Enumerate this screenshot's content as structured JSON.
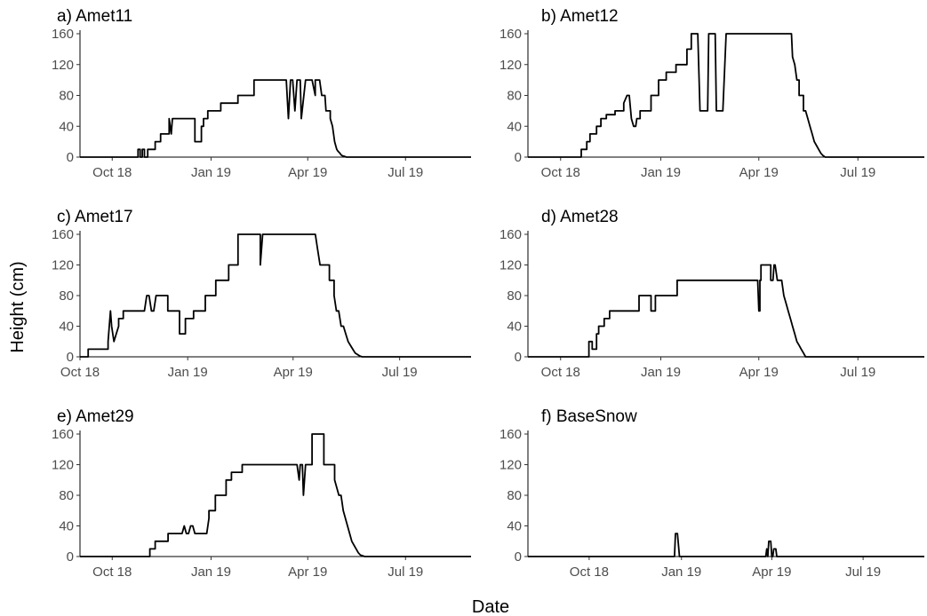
{
  "figure": {
    "ylabel": "Height (cm)",
    "xlabel": "Date"
  },
  "chart_data": [
    {
      "type": "line",
      "title": "a) Amet11",
      "xlim": [
        "2018-09-01",
        "2019-08-31"
      ],
      "ylim": [
        0,
        160
      ],
      "yticks": [
        0,
        40,
        80,
        120,
        160
      ],
      "xticks": [
        {
          "date": "2018-10-01",
          "label": "Oct 18"
        },
        {
          "date": "2019-01-01",
          "label": "Jan 19"
        },
        {
          "date": "2019-04-01",
          "label": "Apr 19"
        },
        {
          "date": "2019-07-01",
          "label": "Jul 19"
        }
      ],
      "grid": false,
      "series": [
        {
          "x": [
            "2018-09-01",
            "2018-10-25",
            "2018-10-25",
            "2018-10-27",
            "2018-10-27",
            "2018-10-29",
            "2018-10-29",
            "2018-10-31",
            "2018-10-31",
            "2018-11-03",
            "2018-11-03",
            "2018-11-10",
            "2018-11-10",
            "2018-11-15",
            "2018-11-15",
            "2018-11-23",
            "2018-11-23",
            "2018-11-25",
            "2018-11-26",
            "2018-11-27",
            "2018-11-28",
            "2018-12-17",
            "2018-12-17",
            "2018-12-23",
            "2018-12-23",
            "2018-12-25",
            "2018-12-25",
            "2018-12-29",
            "2018-12-29",
            "2019-01-10",
            "2019-01-10",
            "2019-01-26",
            "2019-01-26",
            "2019-02-10",
            "2019-02-10",
            "2019-03-12",
            "2019-03-14",
            "2019-03-16",
            "2019-03-18",
            "2019-03-20",
            "2019-03-22",
            "2019-03-25",
            "2019-03-26",
            "2019-03-30",
            "2019-04-01",
            "2019-04-03",
            "2019-04-05",
            "2019-04-08",
            "2019-04-08",
            "2019-04-12",
            "2019-04-14",
            "2019-04-17",
            "2019-04-18",
            "2019-04-22",
            "2019-04-22",
            "2019-04-24",
            "2019-04-25",
            "2019-04-26",
            "2019-04-27",
            "2019-04-28",
            "2019-04-29",
            "2019-05-01",
            "2019-05-02",
            "2019-05-03",
            "2019-05-05",
            "2019-05-07",
            "2019-05-09",
            "2019-05-11",
            "2019-05-13",
            "2019-08-31"
          ],
          "y": [
            0,
            0,
            10,
            10,
            0,
            0,
            10,
            10,
            0,
            0,
            10,
            10,
            20,
            20,
            30,
            30,
            50,
            30,
            50,
            50,
            50,
            50,
            20,
            20,
            40,
            40,
            50,
            50,
            60,
            60,
            70,
            70,
            80,
            80,
            100,
            100,
            50,
            100,
            100,
            60,
            100,
            100,
            50,
            100,
            100,
            100,
            100,
            80,
            100,
            100,
            80,
            80,
            60,
            60,
            50,
            40,
            30,
            20,
            15,
            10,
            8,
            5,
            3,
            2,
            1,
            0,
            0,
            0,
            0,
            0
          ]
        }
      ]
    },
    {
      "type": "line",
      "title": "b) Amet12",
      "xlim": [
        "2018-09-01",
        "2019-08-31"
      ],
      "ylim": [
        0,
        160
      ],
      "yticks": [
        0,
        40,
        80,
        120,
        160
      ],
      "xticks": [
        {
          "date": "2018-10-01",
          "label": "Oct 18"
        },
        {
          "date": "2019-01-01",
          "label": "Jan 19"
        },
        {
          "date": "2019-04-01",
          "label": "Apr 19"
        },
        {
          "date": "2019-07-01",
          "label": "Jul 19"
        }
      ],
      "grid": false,
      "series": [
        {
          "x": [
            "2018-09-01",
            "2018-10-20",
            "2018-10-20",
            "2018-10-25",
            "2018-10-25",
            "2018-10-28",
            "2018-10-28",
            "2018-11-03",
            "2018-11-03",
            "2018-11-07",
            "2018-11-07",
            "2018-11-12",
            "2018-11-12",
            "2018-11-20",
            "2018-11-20",
            "2018-11-28",
            "2018-11-28",
            "2018-12-01",
            "2018-12-03",
            "2018-12-05",
            "2018-12-07",
            "2018-12-09",
            "2018-12-10",
            "2018-12-13",
            "2018-12-13",
            "2018-12-23",
            "2018-12-23",
            "2018-12-30",
            "2018-12-30",
            "2019-01-06",
            "2019-01-06",
            "2019-01-15",
            "2019-01-15",
            "2019-01-25",
            "2019-01-25",
            "2019-01-29",
            "2019-01-29",
            "2019-02-04",
            "2019-02-06",
            "2019-02-08",
            "2019-02-10",
            "2019-02-13",
            "2019-02-14",
            "2019-02-20",
            "2019-02-21",
            "2019-02-23",
            "2019-02-24",
            "2019-02-27",
            "2019-03-02",
            "2019-03-04",
            "2019-03-06",
            "2019-05-01",
            "2019-05-02",
            "2019-05-04",
            "2019-05-06",
            "2019-05-08",
            "2019-05-08",
            "2019-05-12",
            "2019-05-12",
            "2019-05-14",
            "2019-05-16",
            "2019-05-18",
            "2019-05-20",
            "2019-05-22",
            "2019-05-24",
            "2019-05-26",
            "2019-05-28",
            "2019-05-30",
            "2019-06-01",
            "2019-08-31"
          ],
          "y": [
            0,
            0,
            10,
            10,
            20,
            20,
            30,
            30,
            40,
            40,
            50,
            50,
            55,
            55,
            60,
            60,
            70,
            80,
            80,
            50,
            40,
            40,
            50,
            50,
            60,
            60,
            80,
            80,
            100,
            100,
            110,
            110,
            120,
            120,
            140,
            140,
            160,
            160,
            60,
            60,
            60,
            60,
            160,
            160,
            60,
            60,
            60,
            60,
            160,
            160,
            160,
            160,
            130,
            120,
            100,
            100,
            80,
            80,
            60,
            60,
            50,
            40,
            30,
            20,
            15,
            10,
            5,
            2,
            0,
            0
          ]
        }
      ]
    },
    {
      "type": "line",
      "title": "c) Amet17",
      "xlim": [
        "2018-10-01",
        "2019-08-31"
      ],
      "ylim": [
        0,
        160
      ],
      "yticks": [
        0,
        40,
        80,
        120,
        160
      ],
      "xticks": [
        {
          "date": "2018-10-01",
          "label": "Oct 18"
        },
        {
          "date": "2019-01-01",
          "label": "Jan 19"
        },
        {
          "date": "2019-04-01",
          "label": "Apr 19"
        },
        {
          "date": "2019-07-01",
          "label": "Jul 19"
        }
      ],
      "grid": false,
      "series": [
        {
          "x": [
            "2018-10-01",
            "2018-10-08",
            "2018-10-08",
            "2018-10-25",
            "2018-10-25",
            "2018-10-27",
            "2018-10-28",
            "2018-10-30",
            "2018-11-01",
            "2018-11-03",
            "2018-11-03",
            "2018-11-07",
            "2018-11-07",
            "2018-11-10",
            "2018-11-10",
            "2018-11-25",
            "2018-11-27",
            "2018-11-29",
            "2018-12-01",
            "2018-12-03",
            "2018-12-05",
            "2018-12-07",
            "2018-12-09",
            "2018-12-15",
            "2018-12-15",
            "2018-12-25",
            "2018-12-25",
            "2018-12-30",
            "2018-12-30",
            "2019-01-06",
            "2019-01-06",
            "2019-01-16",
            "2019-01-16",
            "2019-01-25",
            "2019-01-25",
            "2019-02-05",
            "2019-02-05",
            "2019-02-13",
            "2019-02-13",
            "2019-02-16",
            "2019-02-16",
            "2019-03-01",
            "2019-03-02",
            "2019-03-04",
            "2019-03-04",
            "2019-03-06",
            "2019-03-08",
            "2019-04-18",
            "2019-04-20",
            "2019-04-22",
            "2019-04-24",
            "2019-04-26",
            "2019-04-28",
            "2019-05-02",
            "2019-05-02",
            "2019-05-06",
            "2019-05-06",
            "2019-05-08",
            "2019-05-10",
            "2019-05-12",
            "2019-05-14",
            "2019-05-16",
            "2019-05-18",
            "2019-05-20",
            "2019-05-22",
            "2019-05-24",
            "2019-05-26",
            "2019-05-28",
            "2019-05-30",
            "2019-08-31"
          ],
          "y": [
            0,
            0,
            10,
            10,
            20,
            60,
            40,
            20,
            30,
            40,
            50,
            50,
            60,
            60,
            60,
            60,
            80,
            80,
            60,
            60,
            80,
            80,
            80,
            80,
            60,
            60,
            30,
            30,
            50,
            50,
            60,
            60,
            80,
            80,
            100,
            100,
            120,
            120,
            160,
            160,
            160,
            160,
            160,
            160,
            120,
            160,
            160,
            160,
            160,
            140,
            120,
            120,
            120,
            120,
            100,
            100,
            80,
            60,
            60,
            40,
            40,
            30,
            20,
            15,
            10,
            5,
            3,
            1,
            0,
            0
          ]
        }
      ]
    },
    {
      "type": "line",
      "title": "d) Amet28",
      "xlim": [
        "2018-09-01",
        "2019-08-31"
      ],
      "ylim": [
        0,
        160
      ],
      "yticks": [
        0,
        40,
        80,
        120,
        160
      ],
      "xticks": [
        {
          "date": "2018-10-01",
          "label": "Oct 18"
        },
        {
          "date": "2019-01-01",
          "label": "Jan 19"
        },
        {
          "date": "2019-04-01",
          "label": "Apr 19"
        },
        {
          "date": "2019-07-01",
          "label": "Jul 19"
        }
      ],
      "grid": false,
      "series": [
        {
          "x": [
            "2018-09-01",
            "2018-10-27",
            "2018-10-27",
            "2018-10-30",
            "2018-10-30",
            "2018-11-03",
            "2018-11-03",
            "2018-11-05",
            "2018-11-05",
            "2018-11-10",
            "2018-11-10",
            "2018-11-15",
            "2018-11-15",
            "2018-12-12",
            "2018-12-12",
            "2018-12-23",
            "2018-12-23",
            "2018-12-27",
            "2018-12-27",
            "2019-01-16",
            "2019-01-16",
            "2019-03-31",
            "2019-04-01",
            "2019-04-02",
            "2019-04-02",
            "2019-04-03",
            "2019-04-03",
            "2019-04-12",
            "2019-04-12",
            "2019-04-14",
            "2019-04-15",
            "2019-04-16",
            "2019-04-18",
            "2019-04-20",
            "2019-04-21",
            "2019-04-22",
            "2019-04-24",
            "2019-04-26",
            "2019-04-28",
            "2019-04-30",
            "2019-05-02",
            "2019-05-04",
            "2019-05-06",
            "2019-05-08",
            "2019-05-10",
            "2019-05-12",
            "2019-05-14",
            "2019-08-31"
          ],
          "y": [
            0,
            0,
            20,
            20,
            10,
            10,
            30,
            30,
            40,
            40,
            50,
            50,
            60,
            60,
            80,
            80,
            60,
            60,
            80,
            80,
            100,
            100,
            60,
            60,
            100,
            100,
            120,
            120,
            100,
            100,
            120,
            120,
            100,
            100,
            100,
            100,
            80,
            70,
            60,
            50,
            40,
            30,
            20,
            15,
            10,
            5,
            0,
            0
          ]
        }
      ]
    },
    {
      "type": "line",
      "title": "e) Amet29",
      "xlim": [
        "2018-09-01",
        "2019-08-31"
      ],
      "ylim": [
        0,
        160
      ],
      "yticks": [
        0,
        40,
        80,
        120,
        160
      ],
      "xticks": [
        {
          "date": "2018-10-01",
          "label": "Oct 18"
        },
        {
          "date": "2019-01-01",
          "label": "Jan 19"
        },
        {
          "date": "2019-04-01",
          "label": "Apr 19"
        },
        {
          "date": "2019-07-01",
          "label": "Jul 19"
        }
      ],
      "grid": false,
      "series": [
        {
          "x": [
            "2018-09-01",
            "2018-11-05",
            "2018-11-05",
            "2018-11-10",
            "2018-11-10",
            "2018-11-22",
            "2018-11-22",
            "2018-12-05",
            "2018-12-07",
            "2018-12-09",
            "2018-12-11",
            "2018-12-13",
            "2018-12-15",
            "2018-12-17",
            "2018-12-19",
            "2018-12-21",
            "2018-12-28",
            "2018-12-30",
            "2018-12-30",
            "2019-01-05",
            "2019-01-05",
            "2019-01-15",
            "2019-01-15",
            "2019-01-20",
            "2019-01-20",
            "2019-01-30",
            "2019-01-30",
            "2019-03-22",
            "2019-03-24",
            "2019-03-25",
            "2019-03-27",
            "2019-03-28",
            "2019-03-30",
            "2019-04-02",
            "2019-04-05",
            "2019-04-05",
            "2019-04-14",
            "2019-04-16",
            "2019-04-16",
            "2019-04-20",
            "2019-04-26",
            "2019-04-26",
            "2019-04-30",
            "2019-05-02",
            "2019-05-04",
            "2019-05-06",
            "2019-05-08",
            "2019-05-10",
            "2019-05-12",
            "2019-05-14",
            "2019-05-16",
            "2019-05-18",
            "2019-05-20",
            "2019-05-22",
            "2019-05-24",
            "2019-05-26",
            "2019-08-31"
          ],
          "y": [
            0,
            0,
            10,
            10,
            20,
            20,
            30,
            30,
            40,
            30,
            30,
            40,
            40,
            30,
            30,
            30,
            30,
            50,
            60,
            60,
            80,
            80,
            100,
            100,
            110,
            110,
            120,
            120,
            100,
            120,
            120,
            80,
            120,
            120,
            120,
            160,
            160,
            160,
            120,
            120,
            120,
            100,
            80,
            80,
            60,
            50,
            40,
            30,
            20,
            15,
            10,
            5,
            2,
            1,
            0,
            0,
            0
          ]
        }
      ]
    },
    {
      "type": "line",
      "title": "f) BaseSnow",
      "xlim": [
        "2018-08-01",
        "2019-08-31"
      ],
      "ylim": [
        0,
        160
      ],
      "yticks": [
        0,
        40,
        80,
        120,
        160
      ],
      "xticks": [
        {
          "date": "2018-10-01",
          "label": "Oct 18"
        },
        {
          "date": "2019-01-01",
          "label": "Jan 19"
        },
        {
          "date": "2019-04-01",
          "label": "Apr 19"
        },
        {
          "date": "2019-07-01",
          "label": "Jul 19"
        }
      ],
      "grid": false,
      "series": [
        {
          "x": [
            "2018-08-01",
            "2018-12-25",
            "2018-12-26",
            "2018-12-28",
            "2018-12-30",
            "2018-12-31",
            "2019-03-26",
            "2019-03-27",
            "2019-03-28",
            "2019-03-29",
            "2019-03-31",
            "2019-04-01",
            "2019-04-02",
            "2019-04-03",
            "2019-04-05",
            "2019-04-06",
            "2019-04-07",
            "2019-08-31"
          ],
          "y": [
            0,
            0,
            30,
            30,
            0,
            0,
            0,
            10,
            0,
            20,
            20,
            0,
            0,
            10,
            10,
            0,
            0,
            0
          ]
        }
      ]
    }
  ]
}
